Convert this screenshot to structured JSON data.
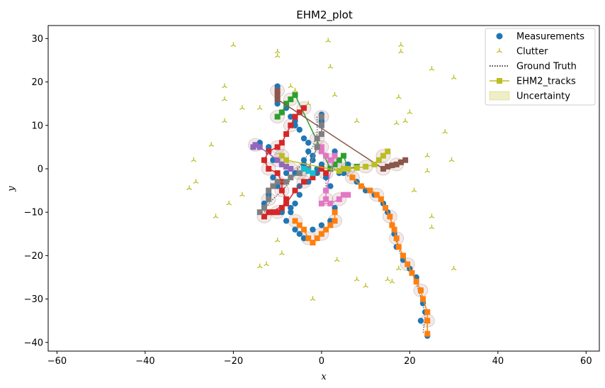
{
  "chart_data": {
    "type": "scatter",
    "title": "EHM2_plot",
    "xlabel": "x",
    "ylabel": "y",
    "xlim": [
      -62,
      63
    ],
    "ylim": [
      -42,
      33
    ],
    "xticks": [
      -60,
      -40,
      -20,
      0,
      20,
      40,
      60
    ],
    "yticks": [
      -40,
      -30,
      -20,
      -10,
      0,
      10,
      20,
      30
    ],
    "legend_position": "top-right",
    "legend": [
      {
        "label": "Measurements",
        "kind": "marker-circle",
        "color": "#1f77b4"
      },
      {
        "label": "Clutter",
        "kind": "marker-tri",
        "color": "#bcbd22"
      },
      {
        "label": "Ground Truth",
        "kind": "line-dotted",
        "color": "#000000"
      },
      {
        "label": "EHM2_tracks",
        "kind": "line-square",
        "color": "#bcbd22"
      },
      {
        "label": "Uncertainty",
        "kind": "patch",
        "color": "#bcbd22"
      }
    ],
    "clutter": [
      [
        -20,
        28.5
      ],
      [
        -10,
        27
      ],
      [
        -10,
        26
      ],
      [
        1.5,
        29.5
      ],
      [
        18,
        28.5
      ],
      [
        18,
        27
      ],
      [
        2,
        23.5
      ],
      [
        25,
        23
      ],
      [
        30,
        21
      ],
      [
        -22,
        19
      ],
      [
        -22,
        16
      ],
      [
        -7,
        19
      ],
      [
        -6,
        18
      ],
      [
        -3,
        15
      ],
      [
        3,
        17
      ],
      [
        -18,
        14
      ],
      [
        -14,
        14
      ],
      [
        17.5,
        16.5
      ],
      [
        20,
        13
      ],
      [
        -22,
        11
      ],
      [
        8,
        11
      ],
      [
        17,
        10.5
      ],
      [
        19,
        11
      ],
      [
        28,
        8.5
      ],
      [
        -25,
        5.5
      ],
      [
        -29,
        2
      ],
      [
        24,
        3
      ],
      [
        29.5,
        2
      ],
      [
        24,
        -0.5
      ],
      [
        -30,
        -4.5
      ],
      [
        -28.5,
        -3
      ],
      [
        21,
        -5
      ],
      [
        -18,
        -6
      ],
      [
        -21,
        -8
      ],
      [
        25,
        -11
      ],
      [
        25,
        -13.5
      ],
      [
        -24,
        -11
      ],
      [
        -10,
        -16.5
      ],
      [
        -9,
        -19.5
      ],
      [
        -14,
        -22.5
      ],
      [
        -12.5,
        -22
      ],
      [
        3.5,
        -21
      ],
      [
        17.5,
        -23
      ],
      [
        30,
        -23
      ],
      [
        8,
        -25.5
      ],
      [
        10,
        -27
      ],
      [
        15,
        -25.5
      ],
      [
        16,
        -26
      ],
      [
        -2,
        -30
      ]
    ],
    "series": [
      {
        "color": "#ff7f0e",
        "points": [
          [
            7,
            -2
          ],
          [
            9,
            -4
          ],
          [
            11,
            -5
          ],
          [
            12.5,
            -6
          ],
          [
            13.5,
            -7
          ],
          [
            14.5,
            -9
          ],
          [
            15.5,
            -11
          ],
          [
            16,
            -13
          ],
          [
            16.5,
            -14
          ],
          [
            17,
            -16
          ],
          [
            17.5,
            -18
          ],
          [
            18.5,
            -20
          ],
          [
            19.5,
            -22
          ],
          [
            20.5,
            -24
          ],
          [
            21.5,
            -26
          ],
          [
            22.5,
            -28
          ],
          [
            23,
            -30
          ],
          [
            24,
            -33
          ],
          [
            24,
            -35
          ],
          [
            24,
            -38
          ]
        ]
      },
      {
        "color": "#2ca02c",
        "points": [
          [
            -10,
            12
          ],
          [
            -9,
            13
          ],
          [
            -8,
            15
          ],
          [
            -7,
            16
          ],
          [
            -6,
            17
          ],
          [
            2,
            0
          ],
          [
            3,
            1
          ],
          [
            4,
            2
          ],
          [
            5,
            3
          ],
          [
            6,
            0
          ],
          [
            8,
            0.5
          ]
        ]
      },
      {
        "color": "#d62728",
        "points": [
          [
            -4,
            14
          ],
          [
            -5,
            13
          ],
          [
            -6,
            12
          ],
          [
            -7,
            10
          ],
          [
            -8,
            8
          ],
          [
            -9,
            6
          ],
          [
            -10,
            5
          ],
          [
            -12,
            4
          ],
          [
            -13,
            2
          ],
          [
            -12,
            0
          ],
          [
            -10,
            -1
          ],
          [
            -9,
            -3
          ],
          [
            -9,
            -5
          ],
          [
            -8,
            -7
          ],
          [
            -9,
            -9
          ],
          [
            -10,
            -10
          ],
          [
            -11,
            -10
          ],
          [
            -12,
            -10
          ],
          [
            -13,
            -11
          ],
          [
            -8,
            -8
          ],
          [
            -6,
            -5
          ],
          [
            -4,
            -3
          ],
          [
            -2,
            -2
          ],
          [
            0,
            0
          ],
          [
            1,
            -1
          ]
        ]
      },
      {
        "color": "#9467bd",
        "points": [
          [
            -15,
            5.5
          ],
          [
            -15.5,
            5
          ],
          [
            -14,
            5
          ],
          [
            -10,
            2
          ],
          [
            -9,
            1
          ],
          [
            -8,
            0.5
          ],
          [
            -7,
            0
          ]
        ]
      },
      {
        "color": "#8c564b",
        "points": [
          [
            -10,
            18
          ],
          [
            -10,
            17
          ],
          [
            -10,
            16
          ],
          [
            14,
            0
          ],
          [
            15,
            0.5
          ],
          [
            16,
            0.8
          ],
          [
            17,
            1
          ],
          [
            18,
            1.5
          ],
          [
            19,
            2
          ]
        ]
      },
      {
        "color": "#e377c2",
        "points": [
          [
            0,
            5
          ],
          [
            0,
            4
          ],
          [
            1,
            3
          ],
          [
            2,
            2
          ],
          [
            3,
            3
          ],
          [
            1,
            -5
          ],
          [
            1,
            -7
          ],
          [
            0,
            -8
          ],
          [
            2,
            -8
          ],
          [
            4,
            -7
          ],
          [
            5,
            -6
          ],
          [
            6,
            -6
          ]
        ]
      },
      {
        "color": "#7f7f7f",
        "points": [
          [
            0,
            12
          ],
          [
            0,
            10
          ],
          [
            0,
            8
          ],
          [
            -1,
            7
          ],
          [
            -1,
            5
          ],
          [
            -3,
            0
          ],
          [
            -5,
            -1
          ],
          [
            -7,
            -2
          ],
          [
            -8,
            -3
          ],
          [
            -10,
            -3
          ],
          [
            -11,
            -4
          ],
          [
            -12,
            -5
          ],
          [
            -12,
            -7
          ],
          [
            -13,
            -9
          ],
          [
            -14,
            -10
          ]
        ]
      },
      {
        "color": "#bcbd22",
        "points": [
          [
            -9,
            3
          ],
          [
            -8,
            2
          ],
          [
            4,
            -0.5
          ],
          [
            5,
            0
          ],
          [
            6,
            0
          ],
          [
            8,
            0.2
          ],
          [
            10,
            0.5
          ],
          [
            12,
            1
          ],
          [
            13,
            2
          ],
          [
            14,
            3
          ],
          [
            15,
            4
          ]
        ]
      },
      {
        "color": "#17becf",
        "points": [
          [
            -4,
            0
          ],
          [
            -3,
            -0.5
          ],
          [
            -2,
            -1
          ]
        ]
      },
      {
        "color": "#ff7f0e",
        "points": [
          [
            -6,
            -12
          ],
          [
            -5,
            -13
          ],
          [
            -4,
            -14
          ],
          [
            -3,
            -16
          ],
          [
            -2,
            -17
          ],
          [
            -1,
            -16
          ],
          [
            0,
            -15
          ],
          [
            1,
            -14
          ],
          [
            2,
            -13
          ],
          [
            3,
            -12
          ],
          [
            3,
            -10
          ]
        ]
      }
    ],
    "measurements": [
      [
        -10,
        19
      ],
      [
        -10,
        15
      ],
      [
        -9,
        13
      ],
      [
        -6,
        10
      ],
      [
        -3,
        6
      ],
      [
        -4,
        2
      ],
      [
        -5,
        -4
      ],
      [
        -6,
        -8
      ],
      [
        -7,
        -10
      ],
      [
        -8,
        -12
      ],
      [
        -6,
        -14
      ],
      [
        -5,
        -15
      ],
      [
        -4,
        -16
      ],
      [
        -2,
        -14
      ],
      [
        0,
        -13
      ],
      [
        2,
        -12
      ],
      [
        3,
        -9
      ],
      [
        1,
        -5
      ],
      [
        3,
        4
      ],
      [
        5,
        -1
      ],
      [
        8,
        -3
      ],
      [
        10,
        -5
      ],
      [
        12,
        -6
      ],
      [
        14,
        -8
      ],
      [
        15,
        -10
      ],
      [
        16,
        -13
      ],
      [
        16.5,
        -15
      ],
      [
        17,
        -18
      ],
      [
        18.5,
        -21
      ],
      [
        20,
        -23
      ],
      [
        21.5,
        -25
      ],
      [
        22.5,
        -28
      ],
      [
        23,
        -31
      ],
      [
        23.5,
        -33
      ],
      [
        22.5,
        -35
      ],
      [
        24,
        -38.5
      ],
      [
        -12,
        5
      ],
      [
        -13,
        2
      ],
      [
        -11,
        -2
      ],
      [
        -10,
        -4
      ],
      [
        -12,
        -6
      ],
      [
        -13,
        -8
      ],
      [
        -11,
        -10
      ],
      [
        -9,
        -10
      ],
      [
        -7,
        -9
      ],
      [
        -5,
        -6
      ],
      [
        -3,
        -3
      ],
      [
        -1,
        -1
      ],
      [
        0,
        1
      ],
      [
        1,
        3
      ],
      [
        2,
        0
      ],
      [
        4,
        -1
      ],
      [
        6,
        1
      ],
      [
        -14,
        6
      ],
      [
        -12,
        4
      ],
      [
        -11,
        2
      ],
      [
        -9,
        1
      ],
      [
        -8,
        -1
      ],
      [
        -6,
        -1
      ],
      [
        -4,
        1
      ],
      [
        -2,
        2
      ],
      [
        -1,
        5
      ],
      [
        0,
        8
      ],
      [
        0,
        11
      ],
      [
        0,
        12.5
      ],
      [
        -8,
        14
      ],
      [
        -7,
        12
      ],
      [
        -6,
        11
      ],
      [
        -5,
        9
      ],
      [
        -4,
        7
      ],
      [
        -3,
        4
      ],
      [
        -2,
        3
      ],
      [
        -1,
        0
      ],
      [
        1,
        -2
      ],
      [
        2,
        -4
      ]
    ],
    "ground_truth": [
      [
        [
          1,
          -4
        ],
        [
          1,
          -1
        ],
        [
          3,
          0
        ],
        [
          5,
          -1
        ],
        [
          8,
          -3
        ],
        [
          11,
          -5
        ],
        [
          13,
          -6
        ],
        [
          14.5,
          -9
        ],
        [
          15.5,
          -11
        ],
        [
          16.5,
          -14
        ],
        [
          17,
          -17
        ],
        [
          18,
          -20
        ],
        [
          19.5,
          -22
        ],
        [
          21,
          -25
        ],
        [
          22,
          -28
        ],
        [
          23,
          -31
        ],
        [
          23.5,
          -34
        ],
        [
          23,
          -38
        ]
      ],
      [
        [
          -1,
          12
        ],
        [
          -1,
          10
        ],
        [
          -1,
          8
        ],
        [
          -2,
          5
        ],
        [
          -4,
          2
        ],
        [
          -6,
          -1
        ],
        [
          -8,
          -4
        ],
        [
          -10,
          -6
        ],
        [
          -12,
          -8
        ],
        [
          -13,
          -10
        ]
      ]
    ]
  }
}
